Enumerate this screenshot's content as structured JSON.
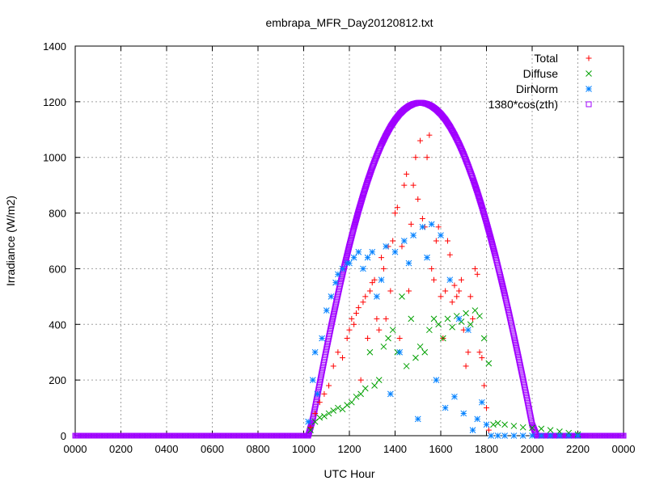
{
  "chart_data": {
    "type": "scatter",
    "title": "embrapa_MFR_Day20120812.txt",
    "xlabel": "UTC Hour",
    "ylabel": "Irradiance (W/m2)",
    "xlim": [
      0,
      24
    ],
    "ylim": [
      0,
      1400
    ],
    "x_ticks": [
      0,
      2,
      4,
      6,
      8,
      10,
      12,
      14,
      16,
      18,
      20,
      22,
      24
    ],
    "x_tick_labels": [
      "0000",
      "0200",
      "0400",
      "0600",
      "0800",
      "1000",
      "1200",
      "1400",
      "1600",
      "1800",
      "2000",
      "2200",
      "0000"
    ],
    "y_ticks": [
      0,
      200,
      400,
      600,
      800,
      1000,
      1200,
      1400
    ],
    "y_tick_labels": [
      "0",
      "200",
      "400",
      "600",
      "800",
      "1000",
      "1200",
      "1400"
    ],
    "grid": true,
    "legend_position": "top-right",
    "series": [
      {
        "name": "Total",
        "marker": "plus",
        "color": "#ff0000",
        "x": [
          10.3,
          10.5,
          10.7,
          10.9,
          11.1,
          11.3,
          11.5,
          11.7,
          11.9,
          12.0,
          12.1,
          12.2,
          12.3,
          12.4,
          12.5,
          12.6,
          12.7,
          12.8,
          12.9,
          13.0,
          13.1,
          13.2,
          13.3,
          13.4,
          13.5,
          13.6,
          13.7,
          13.8,
          13.9,
          14.0,
          14.1,
          14.2,
          14.3,
          14.4,
          14.5,
          14.6,
          14.7,
          14.8,
          14.9,
          15.0,
          15.1,
          15.2,
          15.3,
          15.4,
          15.5,
          15.6,
          15.7,
          15.8,
          15.9,
          16.0,
          16.1,
          16.2,
          16.3,
          16.4,
          16.5,
          16.6,
          16.7,
          16.8,
          16.9,
          17.0,
          17.1,
          17.2,
          17.3,
          17.4,
          17.5,
          17.6,
          17.7,
          17.8,
          17.9,
          18.0,
          18.1
        ],
        "y": [
          30,
          80,
          120,
          150,
          180,
          250,
          300,
          280,
          350,
          380,
          420,
          400,
          440,
          460,
          200,
          480,
          500,
          350,
          520,
          550,
          560,
          420,
          380,
          640,
          600,
          420,
          680,
          520,
          700,
          800,
          820,
          350,
          680,
          900,
          940,
          520,
          760,
          900,
          1000,
          850,
          1060,
          780,
          750,
          1000,
          1080,
          600,
          560,
          700,
          750,
          500,
          350,
          520,
          700,
          650,
          480,
          540,
          500,
          520,
          560,
          380,
          250,
          300,
          500,
          420,
          600,
          580,
          300,
          280,
          180,
          100,
          20
        ]
      },
      {
        "name": "Diffuse",
        "marker": "cross",
        "color": "#00a000",
        "x": [
          10.3,
          10.5,
          10.7,
          10.9,
          11.1,
          11.3,
          11.5,
          11.7,
          11.9,
          12.1,
          12.3,
          12.5,
          12.7,
          12.9,
          13.1,
          13.3,
          13.5,
          13.7,
          13.9,
          14.1,
          14.3,
          14.5,
          14.7,
          14.9,
          15.1,
          15.3,
          15.5,
          15.7,
          15.9,
          16.1,
          16.3,
          16.5,
          16.7,
          16.9,
          17.1,
          17.3,
          17.5,
          17.7,
          17.9,
          18.1,
          18.3,
          18.5,
          18.8,
          19.2,
          19.6,
          20.0,
          20.4,
          20.8,
          21.2,
          21.6,
          22.0
        ],
        "y": [
          20,
          50,
          65,
          70,
          80,
          90,
          100,
          95,
          110,
          120,
          140,
          150,
          170,
          300,
          180,
          200,
          320,
          350,
          380,
          300,
          500,
          250,
          420,
          280,
          320,
          300,
          380,
          420,
          400,
          350,
          420,
          390,
          430,
          410,
          440,
          400,
          450,
          430,
          350,
          260,
          40,
          45,
          40,
          35,
          30,
          28,
          25,
          20,
          15,
          10,
          5
        ]
      },
      {
        "name": "DirNorm",
        "marker": "star",
        "color": "#0080ff",
        "x": [
          10.2,
          10.4,
          10.5,
          10.6,
          10.8,
          11.0,
          11.2,
          11.4,
          11.5,
          11.7,
          11.9,
          12.0,
          12.2,
          12.4,
          12.6,
          12.8,
          13.0,
          13.2,
          13.4,
          13.6,
          13.8,
          14.0,
          14.2,
          14.4,
          14.6,
          14.8,
          15.0,
          15.2,
          15.4,
          15.6,
          15.8,
          16.0,
          16.2,
          16.4,
          16.6,
          16.8,
          17.0,
          17.2,
          17.4,
          17.6,
          17.8,
          18.0,
          18.2,
          18.5,
          18.8,
          19.2,
          19.6,
          20.0,
          20.4,
          20.8,
          21.2,
          21.6,
          22.0
        ],
        "y": [
          50,
          200,
          300,
          150,
          350,
          450,
          500,
          550,
          580,
          600,
          620,
          620,
          640,
          660,
          600,
          640,
          660,
          500,
          560,
          680,
          150,
          660,
          300,
          700,
          620,
          720,
          60,
          750,
          640,
          760,
          200,
          720,
          100,
          560,
          140,
          420,
          80,
          380,
          20,
          60,
          120,
          40,
          0,
          0,
          0,
          0,
          0,
          0,
          0,
          0,
          0,
          0,
          0
        ]
      },
      {
        "name": "1380*cos(zth)",
        "marker": "square",
        "color": "#a000ff",
        "x": [
          0,
          1,
          2,
          3,
          4,
          5,
          6,
          7,
          8,
          9,
          10,
          10.2,
          10.4,
          10.6,
          10.8,
          11.0,
          11.2,
          11.4,
          11.6,
          11.8,
          12.0,
          12.2,
          12.4,
          12.6,
          12.8,
          13.0,
          13.2,
          13.4,
          13.6,
          13.8,
          14.0,
          14.2,
          14.4,
          14.6,
          14.8,
          15.0,
          15.2,
          15.4,
          15.6,
          15.8,
          16.0,
          16.2,
          16.4,
          16.6,
          16.8,
          17.0,
          17.2,
          17.4,
          17.6,
          17.8,
          18.0,
          18.2,
          18.4,
          18.6,
          18.8,
          19.0,
          19.2,
          19.4,
          19.6,
          19.8,
          20.0,
          20.2,
          20.4,
          20.6,
          20.8,
          21.0,
          21.2,
          21.4,
          21.6,
          21.8,
          22.0,
          22.2,
          22.4,
          23,
          24
        ],
        "y": [
          0,
          0,
          0,
          0,
          0,
          0,
          0,
          0,
          0,
          0,
          0,
          0,
          60,
          145,
          230,
          313,
          393,
          470,
          545,
          616,
          684,
          748,
          808,
          864,
          916,
          964,
          1007,
          1046,
          1080,
          1110,
          1135,
          1156,
          1172,
          1184,
          1192,
          1196,
          1196,
          1192,
          1184,
          1172,
          1156,
          1136,
          1111,
          1082,
          1049,
          1012,
          970,
          925,
          876,
          823,
          766,
          706,
          643,
          576,
          507,
          435,
          360,
          283,
          204,
          123,
          40,
          0,
          0,
          0,
          0,
          0,
          0,
          0,
          0,
          0,
          0,
          0,
          0,
          0,
          0
        ]
      }
    ]
  }
}
